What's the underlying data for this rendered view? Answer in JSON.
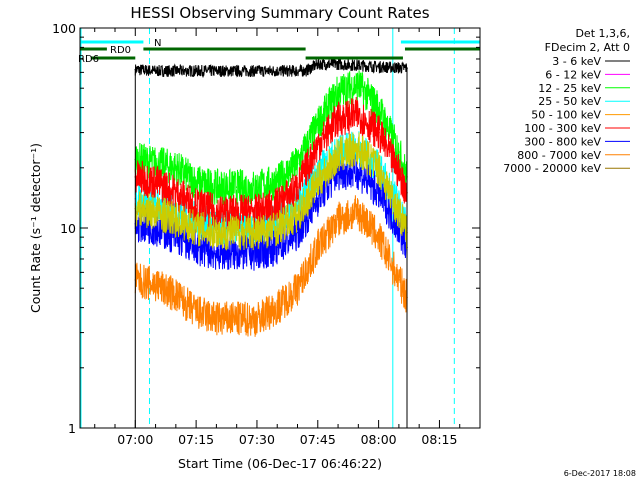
{
  "chart_data": {
    "type": "line",
    "title": "HESSI Observing Summary Count Rates",
    "xlabel": "Start Time (06-Dec-17 06:46:22)",
    "ylabel": "Count Rate (s⁻¹ detector⁻¹)",
    "y_scale": "log",
    "ylim": [
      1,
      100
    ],
    "xlim": [
      "06:46:22",
      "08:25:00"
    ],
    "x_ticks": [
      "07:00",
      "07:15",
      "07:30",
      "07:45",
      "08:00",
      "08:15"
    ],
    "y_ticks": [
      "1",
      "10",
      "100"
    ],
    "legend_header": [
      "Det 1,3,6,",
      "FDecim 2, Att 0"
    ],
    "legend_placement": "right, outside plot",
    "grid": false,
    "series": [
      {
        "name": "3 - 6 keV",
        "color": "#000000",
        "x": [
          "07:00",
          "07:05",
          "07:15",
          "07:30",
          "07:42",
          "07:45",
          "07:50",
          "07:55",
          "08:00",
          "08:07"
        ],
        "values": [
          62,
          61,
          61,
          61,
          61,
          66,
          66,
          65,
          64,
          63
        ]
      },
      {
        "name": "6 - 12 keV",
        "color": "#ff00ff",
        "x": [],
        "values": []
      },
      {
        "name": "12 - 25 keV",
        "color": "#00ff00",
        "x": [
          "07:00",
          "07:05",
          "07:10",
          "07:15",
          "07:20",
          "07:25",
          "07:30",
          "07:35",
          "07:40",
          "07:45",
          "07:50",
          "07:55",
          "08:00",
          "08:05",
          "08:07"
        ],
        "values": [
          22,
          21,
          20,
          17,
          16,
          16,
          16,
          17,
          21,
          33,
          48,
          52,
          40,
          24,
          18
        ]
      },
      {
        "name": "25 - 50 keV",
        "color": "#00ffff",
        "x": [
          "07:00",
          "07:05",
          "07:10",
          "07:15",
          "07:20",
          "07:25",
          "07:30",
          "07:35",
          "07:40",
          "07:45",
          "07:50",
          "07:55",
          "08:00",
          "08:05",
          "08:07"
        ],
        "values": [
          14,
          13,
          12,
          11,
          10,
          10,
          10,
          11,
          13,
          19,
          24,
          25,
          20,
          13,
          10
        ]
      },
      {
        "name": "50 - 100 keV",
        "color": "#ff9900",
        "x": [],
        "values": []
      },
      {
        "name": "100 - 300 keV",
        "color": "#ff0000",
        "x": [
          "07:00",
          "07:05",
          "07:10",
          "07:15",
          "07:20",
          "07:25",
          "07:30",
          "07:35",
          "07:40",
          "07:45",
          "07:50",
          "07:55",
          "08:00",
          "08:05",
          "08:07"
        ],
        "values": [
          18,
          17,
          15,
          13,
          12,
          12,
          12,
          13,
          16,
          26,
          35,
          37,
          30,
          19,
          15
        ]
      },
      {
        "name": "300 - 800 keV",
        "color": "#0000ff",
        "x": [
          "07:00",
          "07:05",
          "07:10",
          "07:15",
          "07:20",
          "07:25",
          "07:30",
          "07:35",
          "07:40",
          "07:45",
          "07:50",
          "07:55",
          "08:00",
          "08:05",
          "08:07"
        ],
        "values": [
          10.5,
          10,
          9,
          8,
          7.5,
          7.5,
          7.5,
          8,
          9.5,
          14,
          19,
          19,
          15,
          10,
          8
        ]
      },
      {
        "name": "800 - 7000 keV",
        "color": "#ff8000",
        "x": [
          "07:00",
          "07:05",
          "07:10",
          "07:15",
          "07:20",
          "07:25",
          "07:30",
          "07:35",
          "07:40",
          "07:45",
          "07:50",
          "07:55",
          "08:00",
          "08:05",
          "08:07"
        ],
        "values": [
          5.5,
          5.2,
          4.6,
          3.8,
          3.5,
          3.5,
          3.5,
          4,
          5,
          8,
          11,
          12,
          9,
          5.5,
          4.5
        ]
      },
      {
        "name": "7000 - 20000 keV",
        "color": "#997700",
        "x": [],
        "values": []
      },
      {
        "name": "",
        "color": "#cccc00",
        "x": [
          "07:00",
          "07:05",
          "07:10",
          "07:15",
          "07:20",
          "07:25",
          "07:30",
          "07:35",
          "07:40",
          "07:45",
          "07:50",
          "07:55",
          "08:00",
          "08:05",
          "08:07"
        ],
        "values": [
          12.5,
          12,
          11,
          10,
          9.5,
          9.5,
          9.5,
          10,
          11.5,
          17,
          23,
          25,
          20,
          12,
          9.5
        ]
      }
    ],
    "flag_bars": [
      {
        "label": "N",
        "color": "#00ffff",
        "segments": [
          [
            "06:46:22",
            "07:02:00"
          ],
          [
            "08:05:30",
            "08:25:00"
          ]
        ]
      },
      {
        "label": "RD0",
        "color": "#006600",
        "segments": [
          [
            "06:46:22",
            "06:53:00"
          ],
          [
            "07:02:00",
            "07:42:00"
          ],
          [
            "08:06:30",
            "08:25:00"
          ]
        ]
      },
      {
        "label": "RD6",
        "color": "#006600",
        "segments": [
          [
            "06:49:00",
            "07:00:00"
          ],
          [
            "07:42:00",
            "08:06:00"
          ]
        ]
      }
    ],
    "vertical_lines": [
      {
        "x": "07:03:30",
        "style": "dashed",
        "color": "#00ffff"
      },
      {
        "x": "08:03:30",
        "style": "solid",
        "color": "#00ffff"
      },
      {
        "x": "08:18:40",
        "style": "dashed",
        "color": "#00ffff"
      }
    ]
  },
  "footer_stamp": "6-Dec-2017 18:08"
}
